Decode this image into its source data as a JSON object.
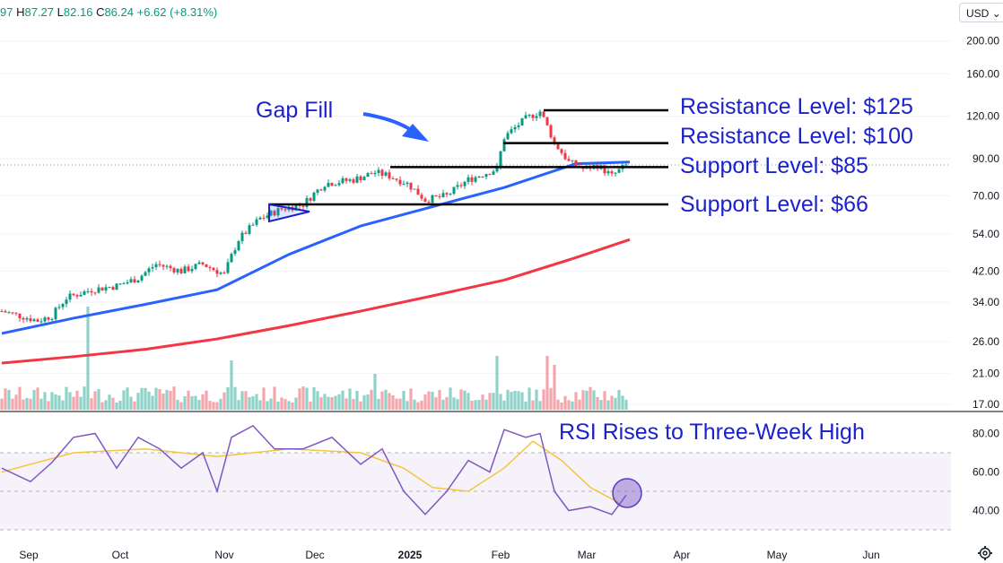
{
  "header": {
    "ohlc_open_fragment": "97",
    "high_label": "H",
    "high_value": "87.27",
    "low_label": "L",
    "low_value": "82.16",
    "close_label": "C",
    "close_value": "86.24",
    "change": "+6.62 (+8.31%)"
  },
  "currency": "USD",
  "colors": {
    "up": "#089981",
    "down": "#f23645",
    "ma50": "#2962ff",
    "ma200": "#f23645",
    "annotation": "#1b22cc",
    "rsi": "#7e57c2",
    "rsi_ma": "#f5c542"
  },
  "annotations": {
    "gap_fill": "Gap Fill",
    "resistance_125": "Resistance Level: $125",
    "resistance_100": "Resistance Level: $100",
    "support_85": "Support Level: $85",
    "support_66": "Support Level: $66",
    "rsi_note": "RSI Rises to Three-Week High"
  },
  "chart_data": [
    {
      "type": "candlestick",
      "yscale": "log",
      "ylim": [
        16,
        230
      ],
      "price_ticks": [
        "200.00",
        "160.00",
        "120.00",
        "90.00",
        "70.00",
        "54.00",
        "42.00",
        "34.00",
        "26.00",
        "21.00",
        "17.00"
      ],
      "price_tick_values": [
        200,
        160,
        120,
        90,
        70,
        54,
        42,
        34,
        26,
        21,
        17
      ],
      "time_ticks": [
        "Sep",
        "Oct",
        "Nov",
        "Dec",
        "2025",
        "Feb",
        "Mar",
        "Apr",
        "May",
        "Jun"
      ],
      "last_close": 86.24,
      "series": [
        {
          "name": "",
          "kind": "ma50",
          "x": [
            0,
            20,
            40,
            60,
            80,
            100,
            120,
            140,
            160,
            175
          ],
          "values": [
            27.5,
            30.5,
            33.5,
            37,
            47,
            57,
            65,
            74,
            87,
            88
          ]
        },
        {
          "name": "",
          "kind": "ma200",
          "x": [
            0,
            20,
            40,
            60,
            80,
            100,
            120,
            140,
            160,
            175
          ],
          "values": [
            22.5,
            23.5,
            24.7,
            26.5,
            29,
            32,
            35.5,
            39.5,
            46,
            52
          ]
        }
      ],
      "levels": [
        125,
        100,
        85,
        66
      ],
      "volume_note": "volume bars shown at bottom of price pane"
    },
    {
      "type": "line",
      "name": "RSI",
      "ylim": [
        25,
        90
      ],
      "ticks": [
        "80.00",
        "60.00",
        "40.00"
      ],
      "tick_values": [
        80,
        60,
        40
      ],
      "band": [
        30,
        70
      ]
    }
  ]
}
